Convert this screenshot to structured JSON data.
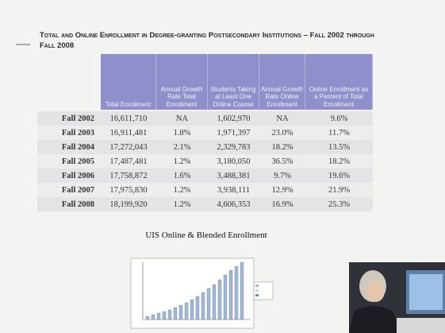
{
  "header": {
    "title": "Total and Online Enrollment in Degree-granting Postsecondary Institutions – Fall 2002 through Fall 2008"
  },
  "table": {
    "columns": [
      "Total Enrollment",
      "Annual Growth Rate Total Enrollment",
      "Students Taking at Least One Online Course",
      "Annual Growth Rate Online Enrollment",
      "Online Enrollment as a Percent of Total Enrollment"
    ],
    "rows": [
      [
        "Fall 2002",
        "16,611,710",
        "NA",
        "1,602,970",
        "NA",
        "9.6%"
      ],
      [
        "Fall 2003",
        "16,911,481",
        "1.8%",
        "1,971,397",
        "23.0%",
        "11.7%"
      ],
      [
        "Fall 2004",
        "17,272,043",
        "2.1%",
        "2,329,783",
        "18.2%",
        "13.5%"
      ],
      [
        "Fall 2005",
        "17,487,481",
        "1.2%",
        "3,180,050",
        "36.5%",
        "18.2%"
      ],
      [
        "Fall 2006",
        "17,758,872",
        "1.6%",
        "3,488,381",
        "9.7%",
        "19.6%"
      ],
      [
        "Fall 2007",
        "17,975,830",
        "1.2%",
        "3,938,111",
        "12.9%",
        "21.9%"
      ],
      [
        "Fall 2008",
        "18,199,920",
        "1.2%",
        "4,606,353",
        "16.9%",
        "25.3%"
      ]
    ]
  },
  "figure": {
    "caption": "UIS Online & Blended Enrollment"
  }
}
